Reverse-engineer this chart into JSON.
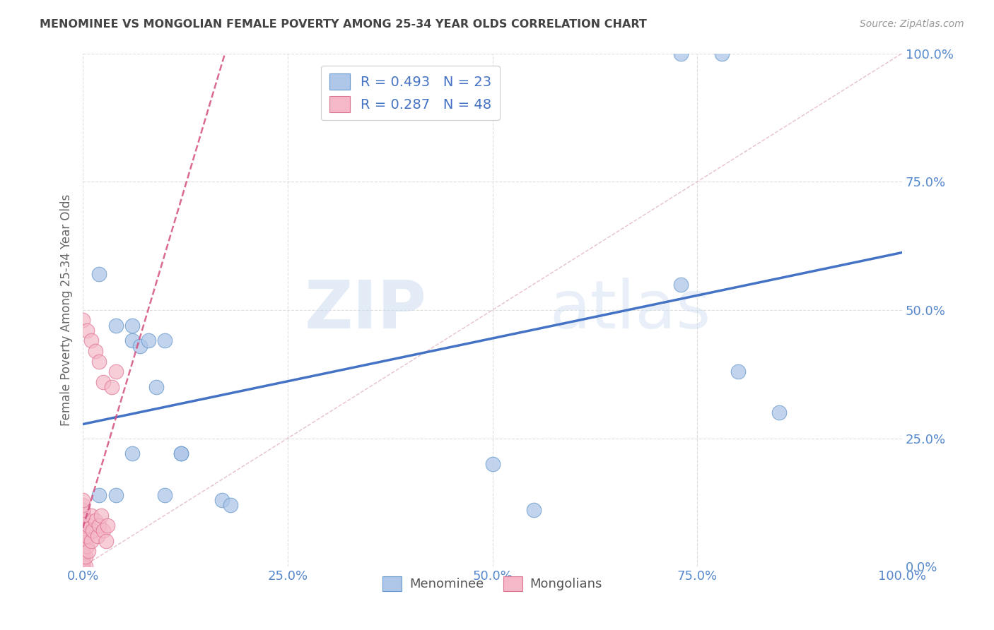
{
  "title": "MENOMINEE VS MONGOLIAN FEMALE POVERTY AMONG 25-34 YEAR OLDS CORRELATION CHART",
  "source": "Source: ZipAtlas.com",
  "ylabel": "Female Poverty Among 25-34 Year Olds",
  "xlim": [
    0.0,
    1.0
  ],
  "ylim": [
    0.0,
    1.0
  ],
  "xticks": [
    0.0,
    0.25,
    0.5,
    0.75,
    1.0
  ],
  "xticklabels": [
    "0.0%",
    "25.0%",
    "50.0%",
    "75.0%",
    "100.0%"
  ],
  "yticks": [
    0.0,
    0.25,
    0.5,
    0.75,
    1.0
  ],
  "yticklabels": [
    "0.0%",
    "25.0%",
    "50.0%",
    "75.0%",
    "100.0%"
  ],
  "menominee_color": "#aec6e8",
  "mongolian_color": "#f4b8c8",
  "menominee_edge": "#6699cc",
  "mongolian_edge": "#e07090",
  "menominee_R": 0.493,
  "menominee_N": 23,
  "mongolian_R": 0.287,
  "mongolian_N": 48,
  "trend_blue": "#4472c4",
  "trend_pink": "#d45080",
  "diagonal_color": "#e0b0c0",
  "watermark_zip": "ZIP",
  "watermark_atlas": "atlas",
  "legend_label_1": "Menominee",
  "legend_label_2": "Mongolians",
  "background_color": "#ffffff",
  "grid_color": "#dddddd",
  "axis_tick_color": "#5588cc",
  "title_color": "#444444",
  "source_color": "#999999"
}
